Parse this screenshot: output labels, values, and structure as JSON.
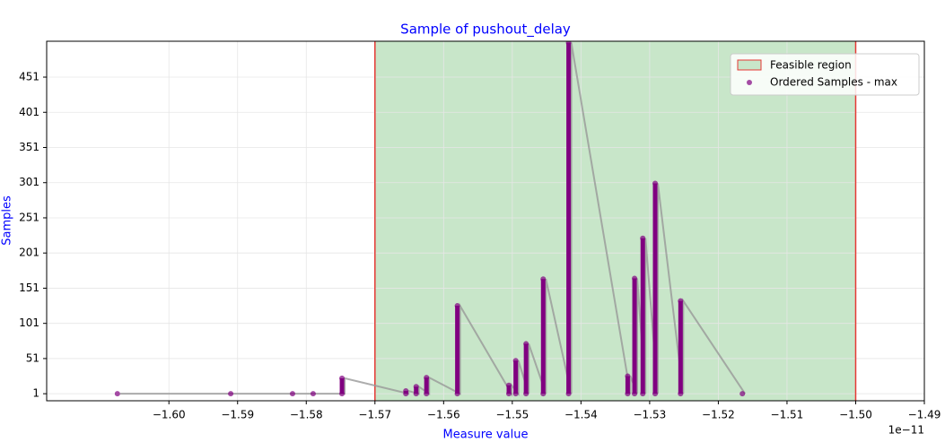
{
  "chart_data": {
    "type": "scatter",
    "title": "Sample of pushout_delay",
    "xlabel": "Measure value",
    "ylabel": "Samples",
    "x_offset_label": "1e−11",
    "xlim": [
      -1.6178,
      -1.49
    ],
    "ylim": [
      -9,
      502
    ],
    "xticks": [
      {
        "value": -1.6,
        "label": "−1.60"
      },
      {
        "value": -1.59,
        "label": "−1.59"
      },
      {
        "value": -1.58,
        "label": "−1.58"
      },
      {
        "value": -1.57,
        "label": "−1.57"
      },
      {
        "value": -1.56,
        "label": "−1.56"
      },
      {
        "value": -1.55,
        "label": "−1.55"
      },
      {
        "value": -1.54,
        "label": "−1.54"
      },
      {
        "value": -1.53,
        "label": "−1.53"
      },
      {
        "value": -1.52,
        "label": "−1.52"
      },
      {
        "value": -1.51,
        "label": "−1.51"
      },
      {
        "value": -1.5,
        "label": "−1.50"
      },
      {
        "value": -1.49,
        "label": "−1.49"
      }
    ],
    "yticks": [
      1,
      51,
      101,
      151,
      201,
      251,
      301,
      351,
      401,
      451
    ],
    "grid": true,
    "legend": "upper right",
    "feasible_region": {
      "name": "Feasible region",
      "xmin": -1.57,
      "xmax": -1.5,
      "color": "#c8e6c9",
      "edge_color": "#e53935"
    },
    "series": [
      {
        "name": "Ordered Samples - max",
        "color": "#800080",
        "line_color": "#999999",
        "x": [
          -1.6075,
          -1.591,
          -1.582,
          -1.579,
          -1.5748,
          -1.5748,
          -1.5655,
          -1.5655,
          -1.564,
          -1.564,
          -1.5625,
          -1.5625,
          -1.558,
          -1.558,
          -1.5505,
          -1.5505,
          -1.5495,
          -1.5495,
          -1.548,
          -1.548,
          -1.5455,
          -1.5455,
          -1.5418,
          -1.5418,
          -1.5332,
          -1.5332,
          -1.5322,
          -1.5322,
          -1.531,
          -1.531,
          -1.5292,
          -1.5292,
          -1.5255,
          -1.5255,
          -1.5165
        ],
        "y": [
          1,
          1,
          1,
          1,
          1,
          23,
          1,
          5,
          1,
          11,
          1,
          24,
          1,
          126,
          1,
          13,
          1,
          48,
          1,
          72,
          1,
          164,
          1,
          500,
          1,
          26,
          1,
          165,
          1,
          222,
          1,
          300,
          1,
          133,
          1
        ]
      }
    ]
  }
}
